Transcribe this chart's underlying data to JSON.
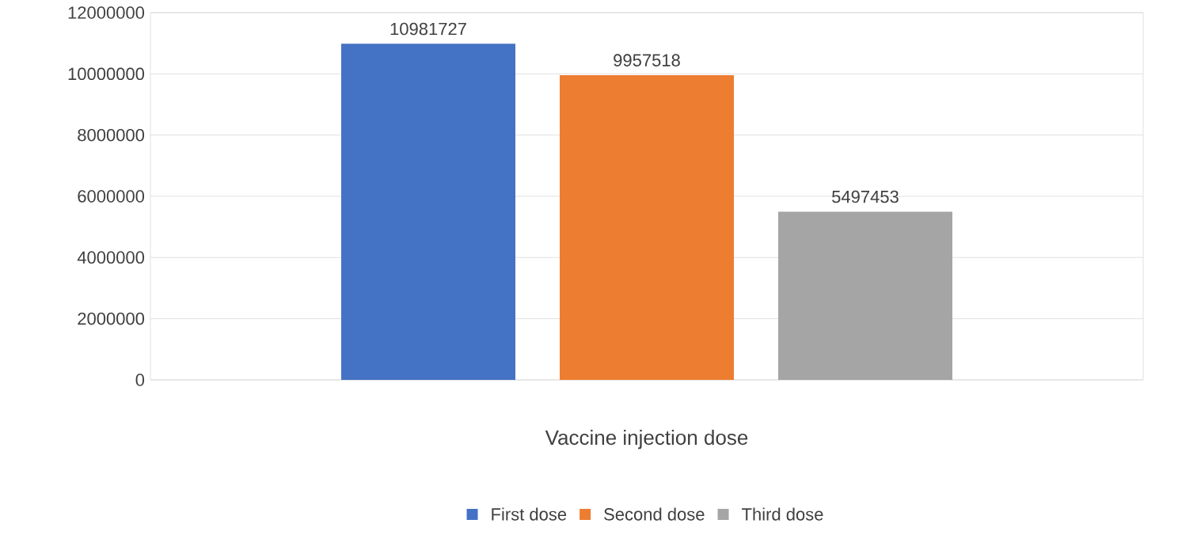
{
  "chart_data": {
    "type": "bar",
    "categories": [
      "Vaccine injection dose"
    ],
    "series": [
      {
        "name": "First dose",
        "color": "#4472c4",
        "values": [
          10981727
        ]
      },
      {
        "name": "Second dose",
        "color": "#ed7d31",
        "values": [
          9957518
        ]
      },
      {
        "name": "Third dose",
        "color": "#a5a5a5",
        "values": [
          5497453
        ]
      }
    ],
    "ylim": [
      0,
      12000000
    ],
    "yticks": [
      0,
      2000000,
      4000000,
      6000000,
      8000000,
      10000000,
      12000000
    ],
    "grid": "y",
    "legend": "bottom",
    "data_labels": true
  }
}
